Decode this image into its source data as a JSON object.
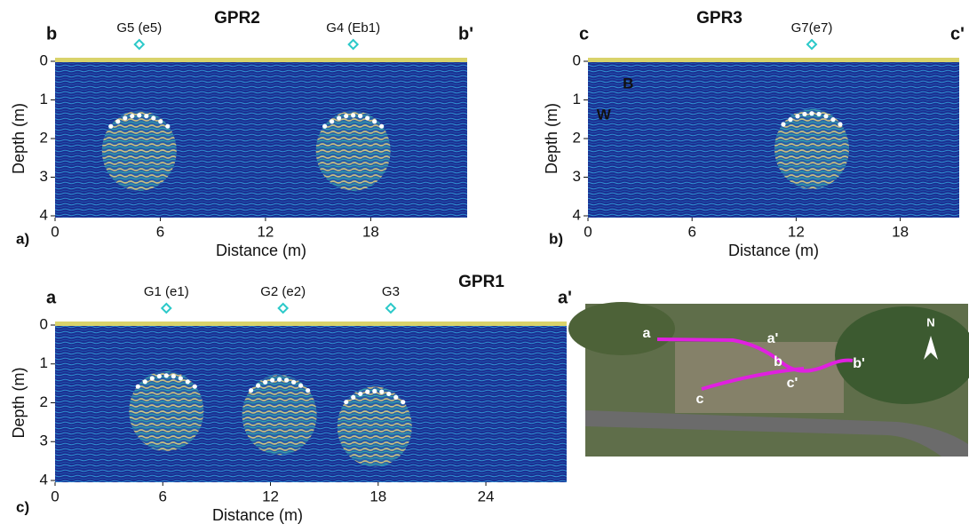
{
  "chart_data": [
    {
      "type": "radargram",
      "title": "GPR2",
      "panel": "a)",
      "start_label": "b",
      "end_label": "b'",
      "x_label": "Distance (m)",
      "y_label": "Depth (m)",
      "xlim": [
        0,
        23.5
      ],
      "ylim": [
        4,
        0
      ],
      "xticks": [
        0,
        6,
        12,
        18
      ],
      "yticks": [
        0,
        1,
        2,
        3,
        4
      ],
      "markers": [
        {
          "label": "G5 (e5)",
          "x": 4.8
        },
        {
          "label": "G4 (Eb1)",
          "x": 17
        }
      ],
      "hyperbolas": [
        {
          "x": 4.8,
          "depth": 1.4
        },
        {
          "x": 17,
          "depth": 1.4
        }
      ]
    },
    {
      "type": "radargram",
      "title": "GPR3",
      "panel": "b)",
      "start_label": "c",
      "end_label": "c'",
      "x_label": "Distance (m)",
      "y_label": "Depth (m)",
      "xlim": [
        0,
        21.4
      ],
      "ylim": [
        4,
        0
      ],
      "xticks": [
        0,
        6,
        12,
        18
      ],
      "yticks": [
        0,
        1,
        2,
        3,
        4
      ],
      "markers": [
        {
          "label": "G7(e7)",
          "x": 12.9
        }
      ],
      "hyperbolas": [
        {
          "x": 12.9,
          "depth": 1.35
        }
      ],
      "annotations": [
        {
          "text": "B",
          "x": 2,
          "depth": 0.6
        },
        {
          "text": "W",
          "x": 0.5,
          "depth": 1.4
        }
      ]
    },
    {
      "type": "radargram",
      "title": "GPR1",
      "panel": "c)",
      "start_label": "a",
      "end_label": "a'",
      "x_label": "Distance (m)",
      "y_label": "Depth (m)",
      "xlim": [
        0,
        28.5
      ],
      "ylim": [
        4,
        0
      ],
      "xticks": [
        0,
        6,
        12,
        18,
        24
      ],
      "yticks": [
        0,
        1,
        2,
        3,
        4
      ],
      "markers": [
        {
          "label": "G1 (e1)",
          "x": 6.2
        },
        {
          "label": "G2 (e2)",
          "x": 12.7
        },
        {
          "label": "G3",
          "x": 18.7
        }
      ],
      "hyperbolas": [
        {
          "x": 6.2,
          "depth": 1.3
        },
        {
          "x": 12.5,
          "depth": 1.4
        },
        {
          "x": 17.8,
          "depth": 1.7
        }
      ]
    }
  ],
  "map": {
    "labels": [
      "a",
      "a'",
      "b",
      "b'",
      "c",
      "c'"
    ],
    "north": "N"
  }
}
